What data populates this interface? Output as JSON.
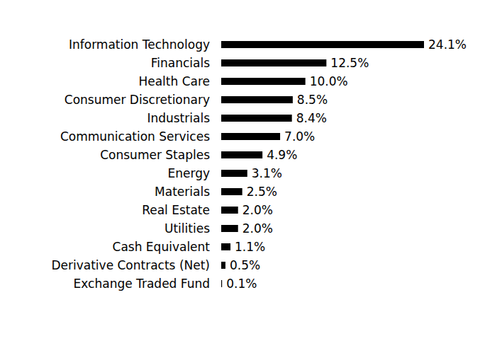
{
  "chart_data": {
    "type": "bar",
    "orientation": "horizontal",
    "categories": [
      "Information Technology",
      "Financials",
      "Health Care",
      "Consumer Discretionary",
      "Industrials",
      "Communication Services",
      "Consumer Staples",
      "Energy",
      "Materials",
      "Real Estate",
      "Utilities",
      "Cash Equivalent",
      "Derivative Contracts (Net)",
      "Exchange Traded Fund"
    ],
    "values": [
      24.1,
      12.5,
      10.0,
      8.5,
      8.4,
      7.0,
      4.9,
      3.1,
      2.5,
      2.0,
      2.0,
      1.1,
      0.5,
      0.1
    ],
    "value_labels": [
      "24.1%",
      "12.5%",
      "10.0%",
      "8.5%",
      "8.4%",
      "7.0%",
      "4.9%",
      "3.1%",
      "2.5%",
      "2.0%",
      "2.0%",
      "1.1%",
      "0.5%",
      "0.1%"
    ],
    "color": "#000000",
    "data_labels": true,
    "tick_labels": "y",
    "grid": false
  }
}
